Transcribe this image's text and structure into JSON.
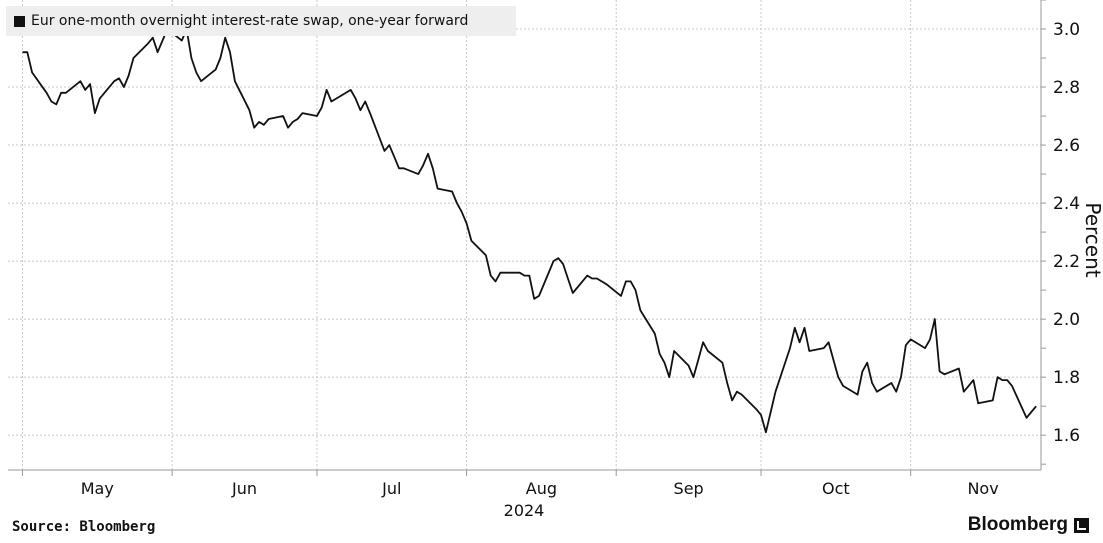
{
  "chart_data": {
    "type": "line",
    "legend": "Eur one-month overnight interest-rate swap, one-year forward",
    "ylabel": "Percent",
    "year_label": "2024",
    "y_ticks": [
      1.6,
      1.8,
      2.0,
      2.2,
      2.4,
      2.6,
      2.8,
      3.0
    ],
    "ylim": [
      1.48,
      3.1
    ],
    "x_tick_labels": [
      "May",
      "Jun",
      "Jul",
      "Aug",
      "Sep",
      "Oct",
      "Nov"
    ],
    "x_range": [
      "2024-04-28",
      "2024-11-28"
    ],
    "month_boundaries": [
      "2024-05-01",
      "2024-06-01",
      "2024-07-01",
      "2024-08-01",
      "2024-09-01",
      "2024-10-01",
      "2024-11-01"
    ],
    "grid": true,
    "series": [
      {
        "points": [
          [
            "2024-05-01",
            2.92
          ],
          [
            "2024-05-02",
            2.92
          ],
          [
            "2024-05-03",
            2.85
          ],
          [
            "2024-05-06",
            2.78
          ],
          [
            "2024-05-07",
            2.75
          ],
          [
            "2024-05-08",
            2.74
          ],
          [
            "2024-05-09",
            2.78
          ],
          [
            "2024-05-10",
            2.78
          ],
          [
            "2024-05-13",
            2.82
          ],
          [
            "2024-05-14",
            2.79
          ],
          [
            "2024-05-15",
            2.81
          ],
          [
            "2024-05-16",
            2.71
          ],
          [
            "2024-05-17",
            2.76
          ],
          [
            "2024-05-20",
            2.82
          ],
          [
            "2024-05-21",
            2.83
          ],
          [
            "2024-05-22",
            2.8
          ],
          [
            "2024-05-23",
            2.84
          ],
          [
            "2024-05-24",
            2.9
          ],
          [
            "2024-05-27",
            2.95
          ],
          [
            "2024-05-28",
            2.97
          ],
          [
            "2024-05-29",
            2.92
          ],
          [
            "2024-05-30",
            2.96
          ],
          [
            "2024-05-31",
            3.0
          ],
          [
            "2024-06-03",
            2.96
          ],
          [
            "2024-06-04",
            3.0
          ],
          [
            "2024-06-05",
            2.9
          ],
          [
            "2024-06-06",
            2.85
          ],
          [
            "2024-06-07",
            2.82
          ],
          [
            "2024-06-10",
            2.86
          ],
          [
            "2024-06-11",
            2.9
          ],
          [
            "2024-06-12",
            2.97
          ],
          [
            "2024-06-13",
            2.92
          ],
          [
            "2024-06-14",
            2.82
          ],
          [
            "2024-06-17",
            2.72
          ],
          [
            "2024-06-18",
            2.66
          ],
          [
            "2024-06-19",
            2.68
          ],
          [
            "2024-06-20",
            2.67
          ],
          [
            "2024-06-21",
            2.69
          ],
          [
            "2024-06-24",
            2.7
          ],
          [
            "2024-06-25",
            2.66
          ],
          [
            "2024-06-26",
            2.68
          ],
          [
            "2024-06-27",
            2.69
          ],
          [
            "2024-06-28",
            2.71
          ],
          [
            "2024-07-01",
            2.7
          ],
          [
            "2024-07-02",
            2.73
          ],
          [
            "2024-07-03",
            2.79
          ],
          [
            "2024-07-04",
            2.75
          ],
          [
            "2024-07-05",
            2.76
          ],
          [
            "2024-07-08",
            2.79
          ],
          [
            "2024-07-09",
            2.76
          ],
          [
            "2024-07-10",
            2.72
          ],
          [
            "2024-07-11",
            2.75
          ],
          [
            "2024-07-12",
            2.71
          ],
          [
            "2024-07-15",
            2.58
          ],
          [
            "2024-07-16",
            2.6
          ],
          [
            "2024-07-17",
            2.56
          ],
          [
            "2024-07-18",
            2.52
          ],
          [
            "2024-07-19",
            2.52
          ],
          [
            "2024-07-22",
            2.5
          ],
          [
            "2024-07-23",
            2.53
          ],
          [
            "2024-07-24",
            2.57
          ],
          [
            "2024-07-25",
            2.52
          ],
          [
            "2024-07-26",
            2.45
          ],
          [
            "2024-07-29",
            2.44
          ],
          [
            "2024-07-30",
            2.4
          ],
          [
            "2024-07-31",
            2.37
          ],
          [
            "2024-08-01",
            2.33
          ],
          [
            "2024-08-02",
            2.27
          ],
          [
            "2024-08-05",
            2.22
          ],
          [
            "2024-08-06",
            2.15
          ],
          [
            "2024-08-07",
            2.13
          ],
          [
            "2024-08-08",
            2.16
          ],
          [
            "2024-08-09",
            2.16
          ],
          [
            "2024-08-12",
            2.16
          ],
          [
            "2024-08-13",
            2.15
          ],
          [
            "2024-08-14",
            2.15
          ],
          [
            "2024-08-15",
            2.07
          ],
          [
            "2024-08-16",
            2.08
          ],
          [
            "2024-08-19",
            2.2
          ],
          [
            "2024-08-20",
            2.21
          ],
          [
            "2024-08-21",
            2.19
          ],
          [
            "2024-08-22",
            2.14
          ],
          [
            "2024-08-23",
            2.09
          ],
          [
            "2024-08-26",
            2.15
          ],
          [
            "2024-08-27",
            2.14
          ],
          [
            "2024-08-28",
            2.14
          ],
          [
            "2024-08-29",
            2.13
          ],
          [
            "2024-08-30",
            2.12
          ],
          [
            "2024-09-02",
            2.08
          ],
          [
            "2024-09-03",
            2.13
          ],
          [
            "2024-09-04",
            2.13
          ],
          [
            "2024-09-05",
            2.1
          ],
          [
            "2024-09-06",
            2.03
          ],
          [
            "2024-09-09",
            1.95
          ],
          [
            "2024-09-10",
            1.88
          ],
          [
            "2024-09-11",
            1.85
          ],
          [
            "2024-09-12",
            1.8
          ],
          [
            "2024-09-13",
            1.89
          ],
          [
            "2024-09-16",
            1.84
          ],
          [
            "2024-09-17",
            1.8
          ],
          [
            "2024-09-18",
            1.86
          ],
          [
            "2024-09-19",
            1.92
          ],
          [
            "2024-09-20",
            1.89
          ],
          [
            "2024-09-23",
            1.85
          ],
          [
            "2024-09-24",
            1.78
          ],
          [
            "2024-09-25",
            1.72
          ],
          [
            "2024-09-26",
            1.75
          ],
          [
            "2024-09-27",
            1.74
          ],
          [
            "2024-09-30",
            1.69
          ],
          [
            "2024-10-01",
            1.67
          ],
          [
            "2024-10-02",
            1.61
          ],
          [
            "2024-10-03",
            1.68
          ],
          [
            "2024-10-04",
            1.75
          ],
          [
            "2024-10-07",
            1.9
          ],
          [
            "2024-10-08",
            1.97
          ],
          [
            "2024-10-09",
            1.92
          ],
          [
            "2024-10-10",
            1.97
          ],
          [
            "2024-10-11",
            1.89
          ],
          [
            "2024-10-14",
            1.9
          ],
          [
            "2024-10-15",
            1.92
          ],
          [
            "2024-10-16",
            1.86
          ],
          [
            "2024-10-17",
            1.8
          ],
          [
            "2024-10-18",
            1.77
          ],
          [
            "2024-10-21",
            1.74
          ],
          [
            "2024-10-22",
            1.82
          ],
          [
            "2024-10-23",
            1.85
          ],
          [
            "2024-10-24",
            1.78
          ],
          [
            "2024-10-25",
            1.75
          ],
          [
            "2024-10-28",
            1.78
          ],
          [
            "2024-10-29",
            1.75
          ],
          [
            "2024-10-30",
            1.8
          ],
          [
            "2024-10-31",
            1.91
          ],
          [
            "2024-11-01",
            1.93
          ],
          [
            "2024-11-04",
            1.9
          ],
          [
            "2024-11-05",
            1.93
          ],
          [
            "2024-11-06",
            2.0
          ],
          [
            "2024-11-07",
            1.82
          ],
          [
            "2024-11-08",
            1.81
          ],
          [
            "2024-11-11",
            1.83
          ],
          [
            "2024-11-12",
            1.75
          ],
          [
            "2024-11-13",
            1.77
          ],
          [
            "2024-11-14",
            1.79
          ],
          [
            "2024-11-15",
            1.71
          ],
          [
            "2024-11-18",
            1.72
          ],
          [
            "2024-11-19",
            1.8
          ],
          [
            "2024-11-20",
            1.79
          ],
          [
            "2024-11-21",
            1.79
          ],
          [
            "2024-11-22",
            1.77
          ],
          [
            "2024-11-25",
            1.66
          ],
          [
            "2024-11-26",
            1.68
          ],
          [
            "2024-11-27",
            1.7
          ]
        ]
      }
    ]
  },
  "footer": {
    "source": "Source: Bloomberg",
    "brand": "Bloomberg"
  },
  "colors": {
    "line": "#111111",
    "grid": "#c8c8c8",
    "legend_bg": "#eeeeee"
  }
}
